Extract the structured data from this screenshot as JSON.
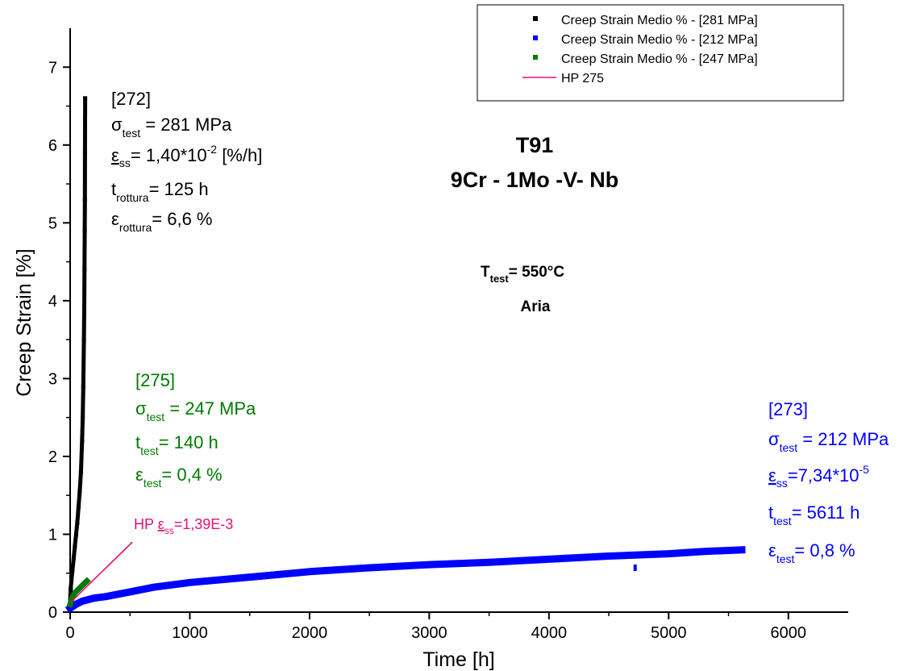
{
  "chart_data": {
    "type": "scatter",
    "xlabel": "Time [h]",
    "ylabel": "Creep Strain [%]",
    "xlim": [
      0,
      6500
    ],
    "ylim": [
      0,
      7.5
    ],
    "xticks": [
      0,
      1000,
      2000,
      3000,
      4000,
      5000,
      6000
    ],
    "yticks": [
      0,
      1,
      2,
      3,
      4,
      5,
      6,
      7
    ],
    "grid": false,
    "legend_position": "top-right",
    "legend": [
      {
        "label": "Creep Strain Medio %  - [281 MPa]",
        "color": "#000000",
        "marker": "square"
      },
      {
        "label": "Creep Strain Medio %  - [212 MPa]",
        "color": "#0000ff",
        "marker": "square"
      },
      {
        "label": "Creep Strain Medio %  - [247 MPa]",
        "color": "#007a00",
        "marker": "square"
      },
      {
        "label": "HP 275",
        "color": "#e0107a",
        "marker": "line"
      }
    ],
    "series": [
      {
        "name": "Creep Strain Medio %  - [281 MPa]",
        "color": "#000000",
        "x": [
          0,
          5,
          10,
          20,
          30,
          40,
          50,
          60,
          70,
          80,
          90,
          100,
          105,
          110,
          115,
          118,
          120,
          122,
          123,
          124,
          125
        ],
        "y": [
          0.15,
          0.3,
          0.4,
          0.55,
          0.7,
          0.85,
          1.0,
          1.15,
          1.35,
          1.55,
          1.8,
          2.2,
          2.5,
          2.9,
          3.5,
          3.9,
          4.4,
          4.9,
          5.3,
          5.9,
          6.6
        ]
      },
      {
        "name": "Creep Strain Medio %  - [212 MPa]",
        "color": "#0000ff",
        "x": [
          0,
          50,
          100,
          200,
          300,
          500,
          700,
          1000,
          1500,
          2000,
          2500,
          3000,
          3500,
          4000,
          4500,
          5000,
          5300,
          5611
        ],
        "y": [
          0.05,
          0.1,
          0.14,
          0.18,
          0.2,
          0.26,
          0.32,
          0.38,
          0.45,
          0.52,
          0.57,
          0.61,
          0.64,
          0.68,
          0.72,
          0.75,
          0.78,
          0.8
        ]
      },
      {
        "name": "Creep Strain Medio %  - [247 MPa]",
        "color": "#007a00",
        "x": [
          0,
          10,
          20,
          40,
          60,
          80,
          100,
          120,
          140
        ],
        "y": [
          0.1,
          0.15,
          0.2,
          0.25,
          0.28,
          0.31,
          0.34,
          0.37,
          0.4
        ]
      },
      {
        "name": "HP 275",
        "color": "#e0107a",
        "x": [
          0,
          520
        ],
        "y": [
          0.12,
          0.9
        ]
      }
    ],
    "outliers": [
      {
        "series": "Creep Strain Medio %  - [212 MPa]",
        "x": 4720,
        "y": 0.57
      }
    ],
    "title_lines": [
      "T91",
      "9Cr - 1Mo -V- Nb"
    ],
    "conditions_line1": {
      "main": "T",
      "sub": "test",
      "rest": "= 550°C"
    },
    "conditions_line2": "Aria",
    "annotations": {
      "s272": {
        "id": "[272]",
        "sigma_rest": " = 281 MPa",
        "eps_rest1": "= 1,40*10",
        "eps_sup": "-2",
        "eps_rest2": " [%/h]",
        "t_main": "t",
        "t_sub": "rottura",
        "t_rest": "= 125 h",
        "er_sub": "rottura",
        "er_rest": "= 6,6 %"
      },
      "s275": {
        "id": "[275]",
        "sigma_rest": " = 247 MPa",
        "t_main": "t",
        "t_sub": "test",
        "t_rest": "= 140 h",
        "e_sub": "test",
        "e_rest": "= 0,4 %"
      },
      "s273": {
        "id": "[273]",
        "sigma_rest": " = 212 MPa",
        "eps_rest1": "=7,34*10",
        "eps_sup": "-5",
        "t_main": "t",
        "t_sub": "test",
        "t_rest": "= 5611 h",
        "e_sub": "test",
        "e_rest": "= 0,8 %"
      },
      "hp": {
        "prefix": "HP ",
        "rest": "=1,39E-3"
      },
      "symbols": {
        "sigma": "σ",
        "epsilon": "ε",
        "test": "test",
        "ss": "ss"
      }
    }
  }
}
